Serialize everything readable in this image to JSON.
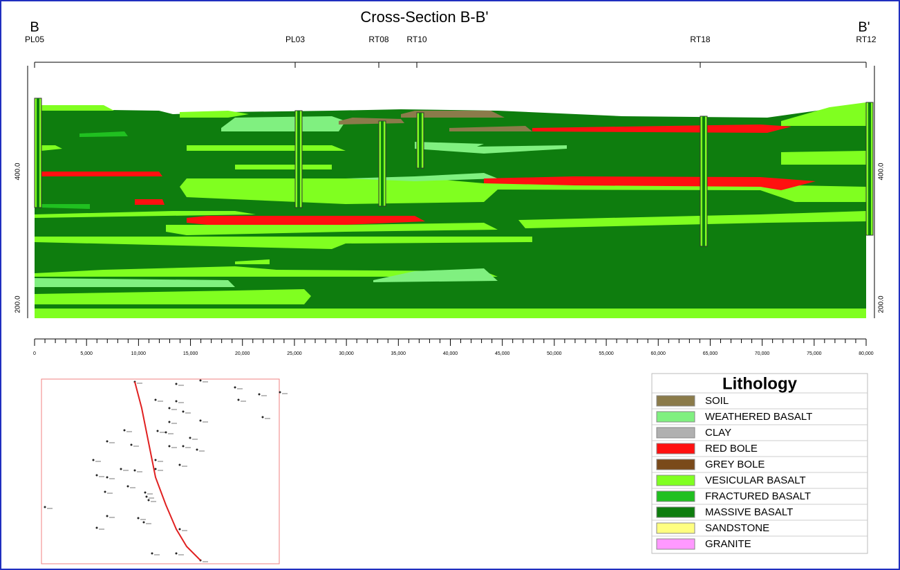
{
  "header": {
    "title": "Cross-Section B-B'",
    "start": "B",
    "end": "B'"
  },
  "wells": [
    {
      "label": "PL05"
    },
    {
      "label": "PL03"
    },
    {
      "label": "RT08"
    },
    {
      "label": "RT10"
    },
    {
      "label": "RT18"
    },
    {
      "label": "RT12"
    }
  ],
  "elevation_labels": {
    "left": [
      "400.0",
      "200.0"
    ],
    "right": [
      "400.0",
      "200.0"
    ]
  },
  "x_axis": {
    "labels": [
      "0",
      "5,000",
      "10,000",
      "15,000",
      "20,000",
      "25,000",
      "30,000",
      "35,000",
      "40,000",
      "45,000",
      "50,000",
      "55,000",
      "60,000",
      "65,000",
      "70,000",
      "75,000",
      "80,000"
    ]
  },
  "legend": {
    "title": "Lithology",
    "items": [
      {
        "label": "SOIL",
        "color": "#8b7b4a"
      },
      {
        "label": "WEATHERED BASALT",
        "color": "#80f080"
      },
      {
        "label": "CLAY",
        "color": "#b0b0b0"
      },
      {
        "label": "RED BOLE",
        "color": "#ff1010"
      },
      {
        "label": "GREY BOLE",
        "color": "#7a4a1a"
      },
      {
        "label": "VESICULAR BASALT",
        "color": "#80ff20"
      },
      {
        "label": "FRACTURED BASALT",
        "color": "#20c020"
      },
      {
        "label": "MASSIVE BASALT",
        "color": "#0e7d0e"
      },
      {
        "label": "SANDSTONE",
        "color": "#ffff80"
      },
      {
        "label": "GRANITE",
        "color": "#ff99ff"
      }
    ]
  }
}
